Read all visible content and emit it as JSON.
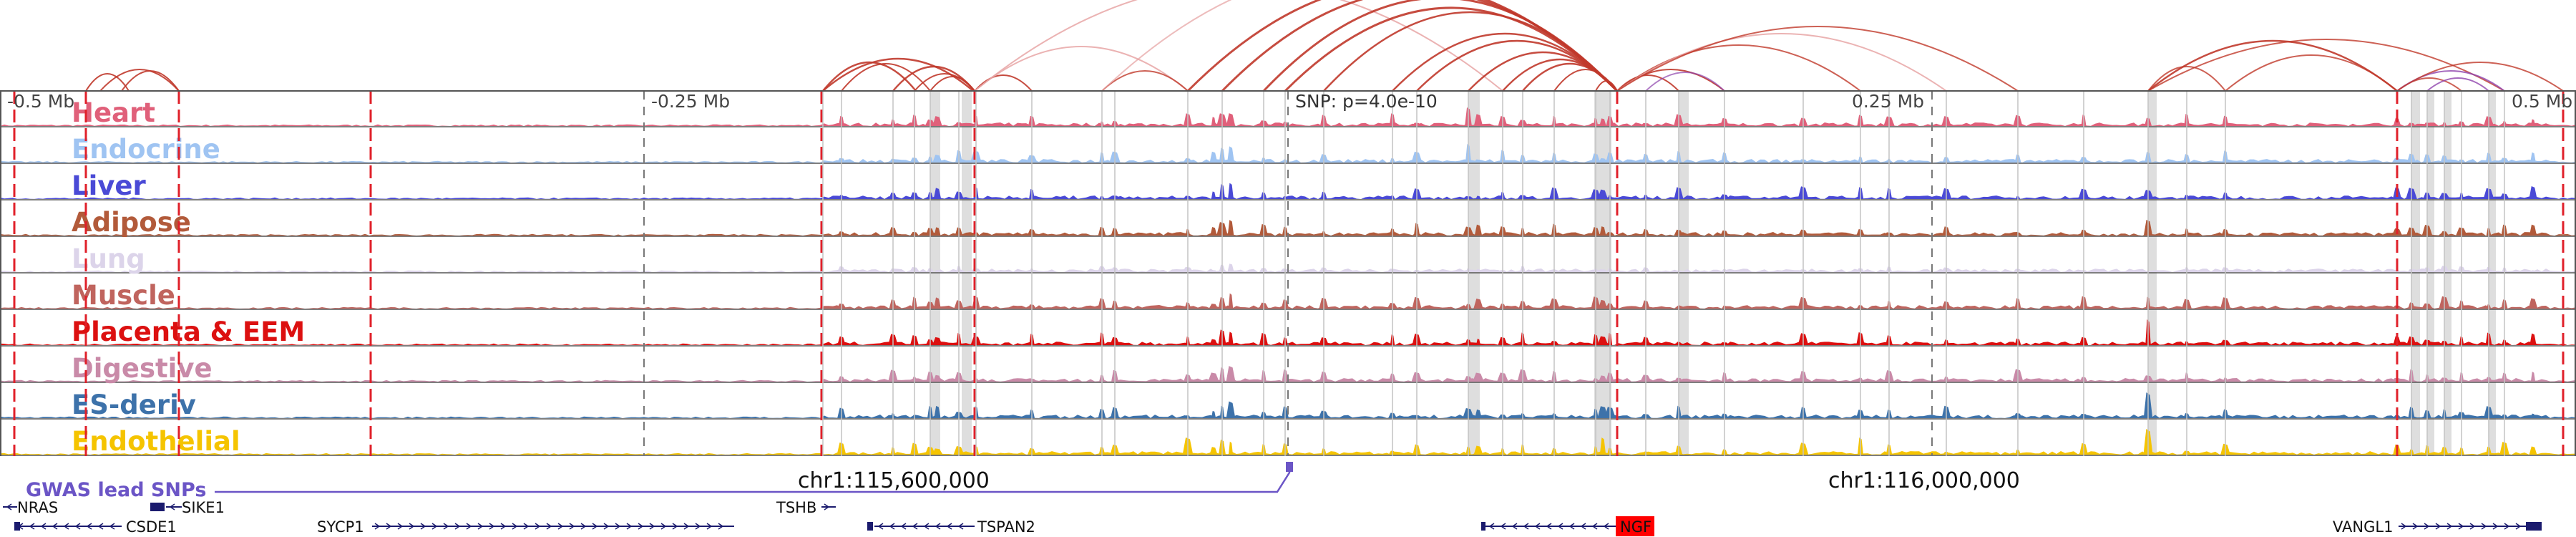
{
  "scale_ticks": [
    {
      "label": "-0.5 Mb"
    },
    {
      "label": "-0.25 Mb"
    },
    {
      "label": "SNP: p=4.0e-10"
    },
    {
      "label": "0.25 Mb"
    },
    {
      "label": "0.5 Mb"
    }
  ],
  "tracks": [
    {
      "label": "Heart",
      "color": "#e0607a"
    },
    {
      "label": "Endocrine",
      "color": "#9fc4f2"
    },
    {
      "label": "Liver",
      "color": "#4a4ad6"
    },
    {
      "label": "Adipose",
      "color": "#b25a3a"
    },
    {
      "label": "Lung",
      "color": "#dcd4ea"
    },
    {
      "label": "Muscle",
      "color": "#c0645e"
    },
    {
      "label": "Placenta & EEM",
      "color": "#dc1010"
    },
    {
      "label": "Digestive",
      "color": "#c98aa8"
    },
    {
      "label": "ES-deriv",
      "color": "#3d72aa"
    },
    {
      "label": "Endothelial",
      "color": "#f5c400"
    }
  ],
  "gwas": {
    "label": "GWAS lead SNPs",
    "color": "#6b55c6"
  },
  "coordinates": [
    {
      "label": "chr1:115,600,000"
    },
    {
      "label": "chr1:116,000,000"
    }
  ],
  "genes": [
    {
      "name": "NRAS",
      "strand": "-",
      "row": 1
    },
    {
      "name": "SIKE1",
      "strand": "-",
      "row": 1
    },
    {
      "name": "CSDE1",
      "strand": "-",
      "row": 2
    },
    {
      "name": "SYCP1",
      "strand": "+",
      "row": 2
    },
    {
      "name": "TSHB",
      "strand": "+",
      "row": 1
    },
    {
      "name": "TSPAN2",
      "strand": "-",
      "row": 2
    },
    {
      "name": "NGF",
      "strand": "-",
      "row": 2,
      "highlight": true
    },
    {
      "name": "VANGL1",
      "strand": "+",
      "row": 2
    }
  ],
  "colors": {
    "arc": "#c0392b",
    "arc_light": "#e6a0a0",
    "arc_purple": "#8e44ad",
    "boundary": "#e0202a",
    "tick": "#777777",
    "highlight_band": "#d8d8d8",
    "gene_body": "#1b1b6e",
    "gene_highlight": "#ff0000"
  }
}
